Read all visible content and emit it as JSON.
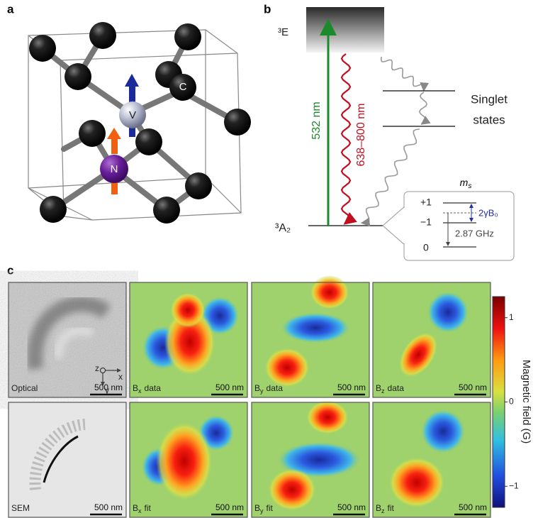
{
  "panels": {
    "a": {
      "label": "a",
      "atoms": {
        "carbon": "C",
        "vacancy": "V",
        "nitrogen": "N"
      }
    },
    "b": {
      "label": "b",
      "excited_state": "³E",
      "ground_state": "³A₂",
      "excitation": "532 nm",
      "emission": "638–800 nm",
      "singlet": [
        "Singlet",
        "states"
      ],
      "inset": {
        "spin_symbol": "m",
        "spin_subscript": "s",
        "levels": [
          "+1",
          "−1",
          "0"
        ],
        "zeeman": "2γB₀",
        "zero_field": "2.87 GHz"
      }
    },
    "c": {
      "label": "c",
      "axes": [
        "z",
        "x",
        "y"
      ],
      "cells": [
        {
          "name": "Optical",
          "scale": "500 nm"
        },
        {
          "symbol": "B",
          "subscript": "x",
          "name": "data",
          "scale": "500 nm"
        },
        {
          "symbol": "B",
          "subscript": "y",
          "name": "data",
          "scale": "500 nm"
        },
        {
          "symbol": "B",
          "subscript": "z",
          "name": "data",
          "scale": "500 nm"
        },
        {
          "name": "SEM",
          "scale": "500 nm"
        },
        {
          "symbol": "B",
          "subscript": "x",
          "name": "fit",
          "scale": "500 nm"
        },
        {
          "symbol": "B",
          "subscript": "y",
          "name": "fit",
          "scale": "500 nm"
        },
        {
          "symbol": "B",
          "subscript": "z",
          "name": "fit",
          "scale": "500 nm"
        }
      ],
      "colorbar": {
        "label": "Magnetic field (G)",
        "range": [
          -1.25,
          1.25
        ],
        "ticks": [
          1,
          0,
          {
            "value": -1,
            "label": "−1"
          }
        ]
      }
    }
  }
}
